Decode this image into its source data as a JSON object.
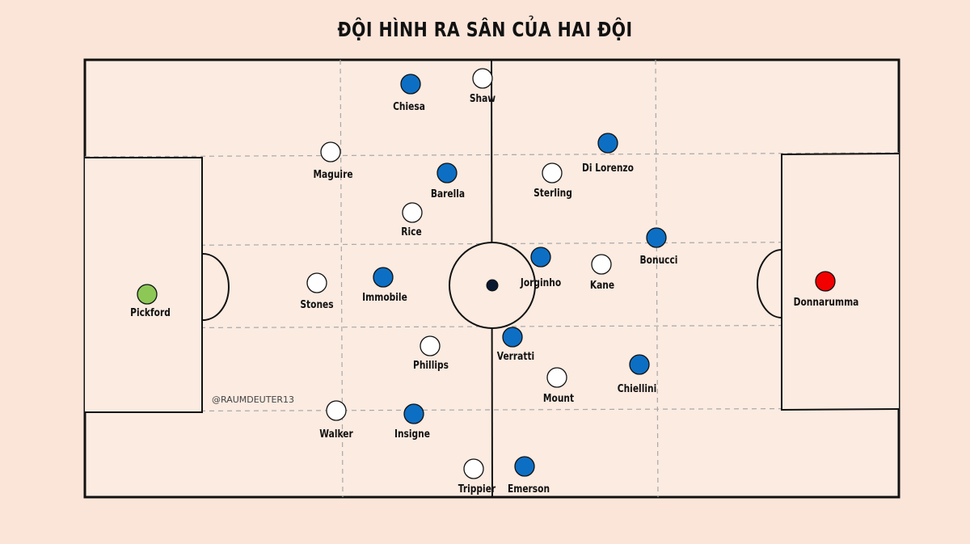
{
  "title": "ĐỘI HÌNH RA SÂN CỦA HAI ĐỘI",
  "watermark": "@RAUMDEUTER13",
  "colors": {
    "background": "#fbe5d9",
    "pitch": "#fbebe1",
    "line": "#111111",
    "dashed": "#a8a8a8",
    "team_england": "#ffffff",
    "team_italy": "#0d6fc4",
    "england_keeper": "#8dc857",
    "italy_keeper": "#f20000"
  },
  "players": [
    {
      "name": "Pickford",
      "team": "england_keeper"
    },
    {
      "name": "Maguire",
      "team": "team_england"
    },
    {
      "name": "Stones",
      "team": "team_england"
    },
    {
      "name": "Walker",
      "team": "team_england"
    },
    {
      "name": "Shaw",
      "team": "team_england"
    },
    {
      "name": "Rice",
      "team": "team_england"
    },
    {
      "name": "Phillips",
      "team": "team_england"
    },
    {
      "name": "Trippier",
      "team": "team_england"
    },
    {
      "name": "Sterling",
      "team": "team_england"
    },
    {
      "name": "Kane",
      "team": "team_england"
    },
    {
      "name": "Mount",
      "team": "team_england"
    },
    {
      "name": "Donnarumma",
      "team": "italy_keeper"
    },
    {
      "name": "Chiesa",
      "team": "team_italy"
    },
    {
      "name": "Barella",
      "team": "team_italy"
    },
    {
      "name": "Immobile",
      "team": "team_italy"
    },
    {
      "name": "Insigne",
      "team": "team_italy"
    },
    {
      "name": "Jorginho",
      "team": "team_italy"
    },
    {
      "name": "Verratti",
      "team": "team_italy"
    },
    {
      "name": "Emerson",
      "team": "team_italy"
    },
    {
      "name": "Di Lorenzo",
      "team": "team_italy"
    },
    {
      "name": "Bonucci",
      "team": "team_italy"
    },
    {
      "name": "Chiellini",
      "team": "team_italy"
    }
  ]
}
